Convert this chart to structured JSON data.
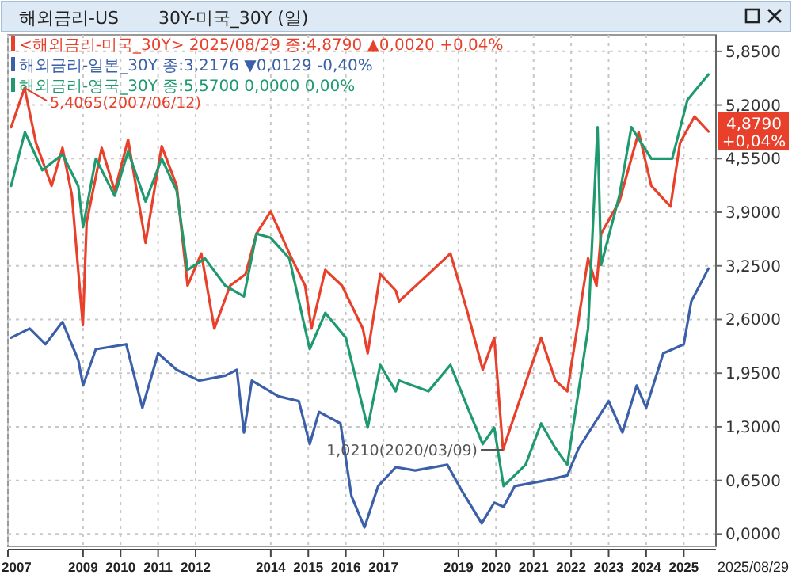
{
  "chart_data": {
    "type": "line",
    "title": "해외금리-US",
    "subtitle": "30Y-미국_30Y (일)",
    "xlim": [
      "2007-01-01",
      "2025-11-10"
    ],
    "ylim": [
      -0.15,
      6.05
    ],
    "xticks": [
      {
        "value": "2007",
        "label": "2007"
      },
      {
        "value": "2009",
        "label": "2009"
      },
      {
        "value": "2010",
        "label": "2010"
      },
      {
        "value": "2011",
        "label": "2011"
      },
      {
        "value": "2012",
        "label": "2012"
      },
      {
        "value": "2014",
        "label": "2014"
      },
      {
        "value": "2015",
        "label": "2015"
      },
      {
        "value": "2016",
        "label": "2016"
      },
      {
        "value": "2017",
        "label": "2017"
      },
      {
        "value": "2019",
        "label": "2019"
      },
      {
        "value": "2020",
        "label": "2020"
      },
      {
        "value": "2021",
        "label": "2021"
      },
      {
        "value": "2022",
        "label": "2022"
      },
      {
        "value": "2023",
        "label": "2023"
      },
      {
        "value": "2024",
        "label": "2024"
      },
      {
        "value": "2025",
        "label": "2025"
      }
    ],
    "yticks": [
      {
        "value": 0,
        "label": "0,0000"
      },
      {
        "value": 0.65,
        "label": "0,6500"
      },
      {
        "value": 1.3,
        "label": "1,3000"
      },
      {
        "value": 1.95,
        "label": "1,9500"
      },
      {
        "value": 2.6,
        "label": "2,6000"
      },
      {
        "value": 3.25,
        "label": "3,2500"
      },
      {
        "value": 3.9,
        "label": "3,9000"
      },
      {
        "value": 4.55,
        "label": "4,5500"
      },
      {
        "value": 5.2,
        "label": "5,2000"
      },
      {
        "value": 5.85,
        "label": "5,8500"
      }
    ],
    "grid": true,
    "legend": "top left",
    "line_style": "solid",
    "marker": "none",
    "annotations": [
      {
        "text": "5,4065(2007/06/12)",
        "x": "2007-06-12",
        "y": 5.4065
      },
      {
        "text": "1,0210(2020/03/09)",
        "x": "2020-03-09",
        "y": 1.021
      },
      {
        "text": "4,8790\n+0,04%",
        "x": "2025-08-29",
        "y": 4.879
      },
      "2025/08/29"
    ],
    "series": [
      {
        "name": "<해외금리-미국_30Y> 2025/08/29 종:4,8790 ▲0,0020 +0,04%",
        "color": "#e8402a",
        "x": [
          "2007-02-01",
          "2007-06-12",
          "2007-10-01",
          "2008-03-01",
          "2008-06-15",
          "2008-09-15",
          "2008-12-30",
          "2009-02-05",
          "2009-07-01",
          "2009-11-05",
          "2010-03-15",
          "2010-09-01",
          "2011-02-05",
          "2011-07-01",
          "2011-10-15",
          "2012-02-25",
          "2012-07-01",
          "2012-12-01",
          "2013-05-01",
          "2013-08-15",
          "2013-12-31",
          "2014-07-01",
          "2014-12-01",
          "2015-02-01",
          "2015-06-15",
          "2015-11-25",
          "2016-06-15",
          "2016-08-01",
          "2016-12-01",
          "2017-05-01",
          "2017-06-01",
          "2018-03-15",
          "2018-10-15",
          "2019-04-01",
          "2019-08-25",
          "2019-12-15",
          "2020-03-09",
          "2020-08-15",
          "2021-03-15",
          "2021-08-01",
          "2021-11-25",
          "2022-06-15",
          "2022-09-05",
          "2022-10-20",
          "2023-04-15",
          "2023-10-20",
          "2024-02-20",
          "2024-08-25",
          "2024-11-25",
          "2025-04-15",
          "2025-08-29"
        ],
        "values": [
          4.93,
          5.4065,
          4.74,
          4.22,
          4.68,
          4.1,
          2.53,
          3.78,
          4.68,
          4.16,
          4.78,
          3.53,
          4.7,
          4.22,
          3.01,
          3.4,
          2.49,
          3.01,
          3.15,
          3.64,
          3.91,
          3.4,
          3.01,
          2.49,
          3.2,
          3.01,
          2.49,
          2.19,
          3.15,
          2.95,
          2.82,
          3.15,
          3.4,
          2.68,
          1.99,
          2.38,
          1.021,
          1.61,
          2.38,
          1.86,
          1.73,
          3.34,
          3.01,
          3.64,
          4.03,
          4.87,
          4.22,
          3.97,
          4.74,
          5.06,
          4.879
        ]
      },
      {
        "name": "해외금리-일본_30Y 종:3,2176 ▼0,0129 -0,40%",
        "color": "#3b5fa8",
        "x": [
          "2007-02-01",
          "2007-08-01",
          "2008-01-01",
          "2008-06-15",
          "2008-11-15",
          "2009-01-01",
          "2009-05-05",
          "2010-02-25",
          "2010-08-01",
          "2011-01-01",
          "2011-07-01",
          "2012-02-05",
          "2012-10-15",
          "2013-02-05",
          "2013-04-15",
          "2013-07-01",
          "2014-03-15",
          "2014-10-01",
          "2015-01-15",
          "2015-04-15",
          "2015-11-10",
          "2016-02-25",
          "2016-07-01",
          "2016-11-10",
          "2017-05-01",
          "2017-11-05",
          "2018-09-15",
          "2019-02-05",
          "2019-08-15",
          "2019-12-15",
          "2020-03-15",
          "2020-07-01",
          "2021-05-01",
          "2021-11-25",
          "2022-03-15",
          "2023-01-01",
          "2023-05-15",
          "2023-10-01",
          "2024-01-01",
          "2024-06-15",
          "2025-01-01",
          "2025-03-15",
          "2025-08-29"
        ],
        "values": [
          2.38,
          2.49,
          2.3,
          2.57,
          2.11,
          1.8,
          2.24,
          2.3,
          1.53,
          2.19,
          1.99,
          1.86,
          1.92,
          1.99,
          1.23,
          1.86,
          1.67,
          1.61,
          1.09,
          1.48,
          1.34,
          0.46,
          0.08,
          0.58,
          0.81,
          0.77,
          0.84,
          0.52,
          0.13,
          0.38,
          0.33,
          0.58,
          0.65,
          0.71,
          1.04,
          1.61,
          1.23,
          1.8,
          1.53,
          2.19,
          2.3,
          2.82,
          3.2176
        ]
      },
      {
        "name": "해외금리-영국_30Y 종:5,5700 0,0000 0,00%",
        "color": "#1e9a6e",
        "x": [
          "2007-02-01",
          "2007-06-15",
          "2007-12-01",
          "2008-06-15",
          "2008-11-15",
          "2009-01-01",
          "2009-05-05",
          "2009-11-05",
          "2010-03-15",
          "2010-09-01",
          "2011-02-05",
          "2011-07-01",
          "2011-10-15",
          "2012-04-01",
          "2012-10-15",
          "2013-04-15",
          "2013-08-15",
          "2013-12-31",
          "2014-07-01",
          "2015-01-15",
          "2015-06-15",
          "2016-01-01",
          "2016-08-01",
          "2016-12-01",
          "2017-05-01",
          "2017-06-01",
          "2018-03-15",
          "2018-10-15",
          "2019-04-01",
          "2019-08-25",
          "2019-12-15",
          "2020-03-15",
          "2020-10-15",
          "2021-03-15",
          "2021-08-01",
          "2021-11-25",
          "2022-06-15",
          "2022-09-15",
          "2022-10-20",
          "2023-04-15",
          "2023-08-10",
          "2024-02-20",
          "2024-09-10",
          "2025-02-05",
          "2025-08-29"
        ],
        "values": [
          4.22,
          4.87,
          4.41,
          4.6,
          4.22,
          3.72,
          4.55,
          4.1,
          4.64,
          4.03,
          4.55,
          4.16,
          3.2,
          3.34,
          3.01,
          2.88,
          3.64,
          3.59,
          3.34,
          2.24,
          2.68,
          2.38,
          1.29,
          2.05,
          1.73,
          1.86,
          1.73,
          2.05,
          1.53,
          1.09,
          1.29,
          0.58,
          0.84,
          1.34,
          1.04,
          0.84,
          2.49,
          4.93,
          3.26,
          4.1,
          4.93,
          4.55,
          4.55,
          5.26,
          5.57
        ]
      }
    ]
  }
}
